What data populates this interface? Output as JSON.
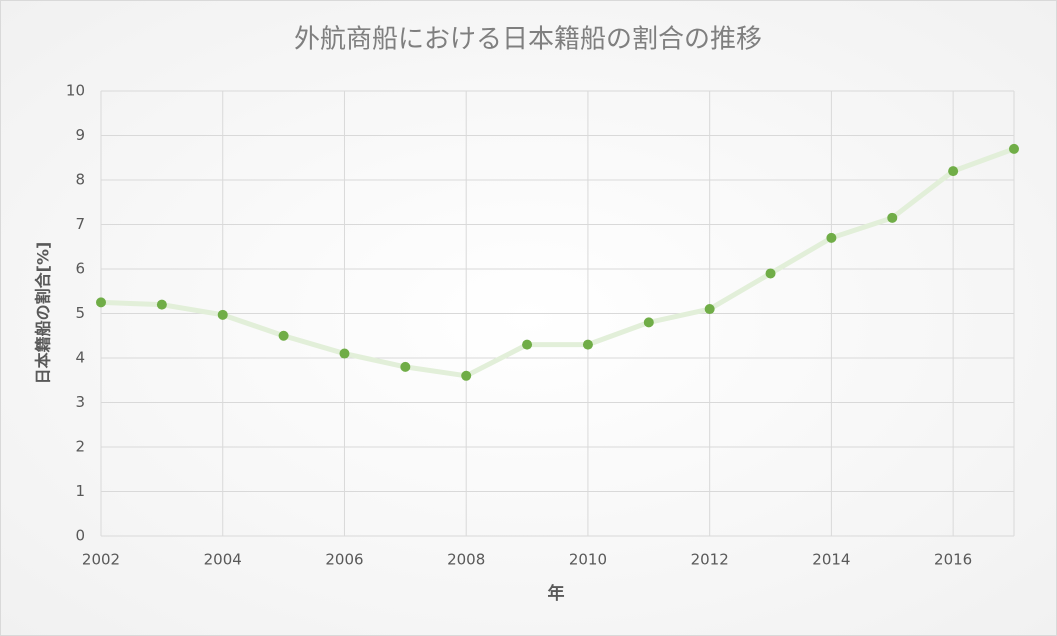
{
  "chart_data": {
    "type": "line",
    "title": "外航商船における日本籍船の割合の推移",
    "x_label": "年",
    "y_label": "日本籍船の割合[%]",
    "x": [
      2002,
      2003,
      2004,
      2005,
      2006,
      2007,
      2008,
      2009,
      2010,
      2011,
      2012,
      2013,
      2014,
      2015,
      2016,
      2017
    ],
    "values": [
      5.25,
      5.2,
      4.97,
      4.5,
      4.1,
      3.8,
      3.6,
      4.3,
      4.3,
      4.8,
      5.1,
      5.9,
      6.7,
      7.15,
      8.2,
      8.7
    ],
    "color": "#70ad47",
    "line_color": "#e2efd9",
    "xlim": [
      2002,
      2017
    ],
    "xticks": [
      2002,
      2004,
      2006,
      2008,
      2010,
      2012,
      2014,
      2016
    ],
    "ylim": [
      0,
      10
    ],
    "yticks": [
      0,
      1,
      2,
      3,
      4,
      5,
      6,
      7,
      8,
      9,
      10
    ],
    "grid": true
  }
}
